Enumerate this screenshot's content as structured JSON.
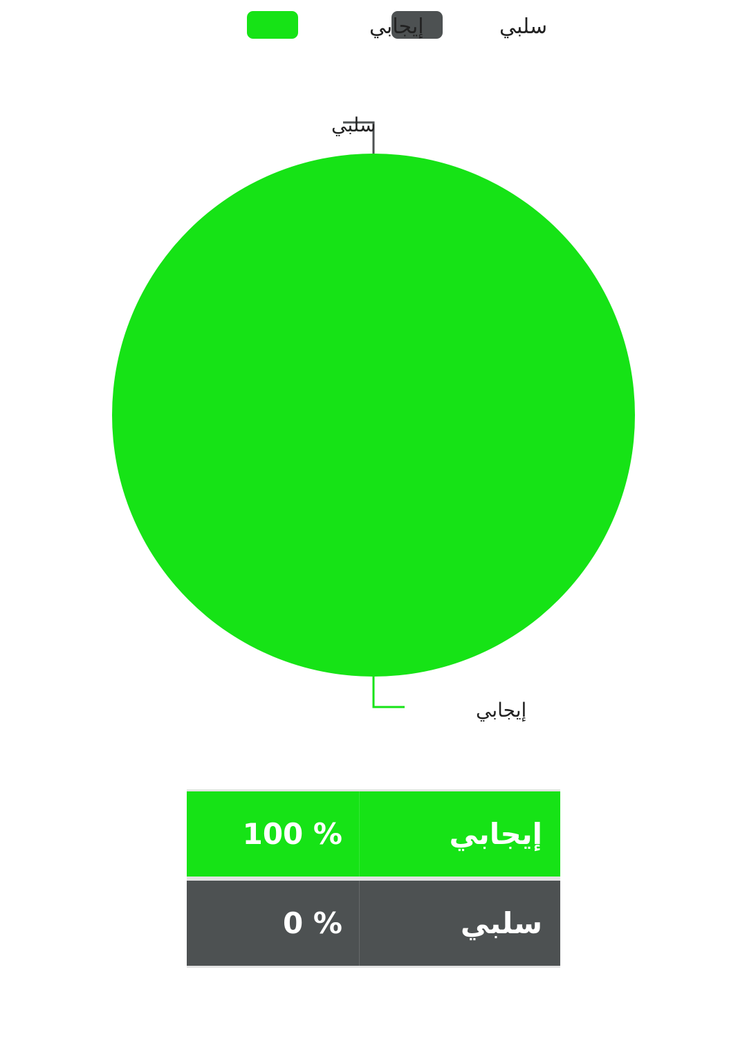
{
  "chart_data": {
    "type": "pie",
    "slices": [
      {
        "name": "إيجابي",
        "value": 100,
        "color": "#16e316"
      },
      {
        "name": "سلبي",
        "value": 0,
        "color": "#4d5152"
      }
    ],
    "legend": {
      "position": "top-center",
      "items": [
        {
          "name": "سلبي",
          "color": "#4d5152"
        },
        {
          "name": "إيجابي",
          "color": "#16e316"
        }
      ]
    },
    "callouts": {
      "top": "سلبي",
      "bottom": "إيجابي"
    }
  },
  "table": {
    "rows": [
      {
        "label": "إيجابي",
        "value": "100",
        "unit": "%",
        "color": "#16e316"
      },
      {
        "label": "سلبي",
        "value": "0",
        "unit": "%",
        "color": "#4d5152"
      }
    ]
  }
}
